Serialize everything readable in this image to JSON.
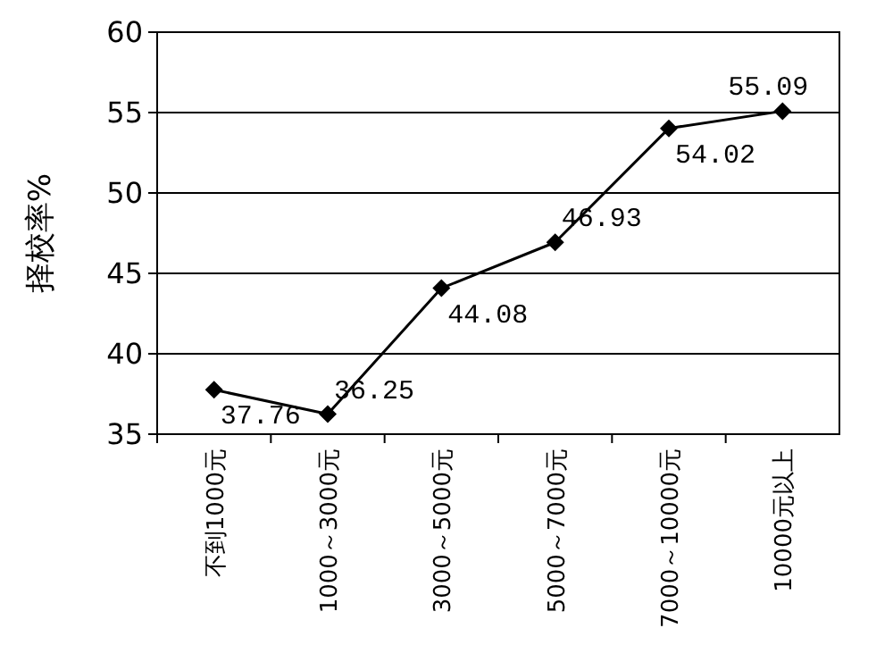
{
  "chart_data": {
    "type": "line",
    "ylabel": "择校率%",
    "categories": [
      "不到1000元",
      "1000～3000元",
      "3000～5000元",
      "5000～7000元",
      "7000～10000元",
      "10000元以上"
    ],
    "series": [
      {
        "color": "#000000",
        "values": [
          37.76,
          36.25,
          44.08,
          46.93,
          54.02,
          55.09
        ]
      }
    ],
    "ylim": [
      35,
      60
    ],
    "yticks": [
      35,
      40,
      45,
      50,
      55,
      60
    ],
    "grid": "y",
    "marker": "diamond",
    "line_style": "solid",
    "data_labels": true
  }
}
